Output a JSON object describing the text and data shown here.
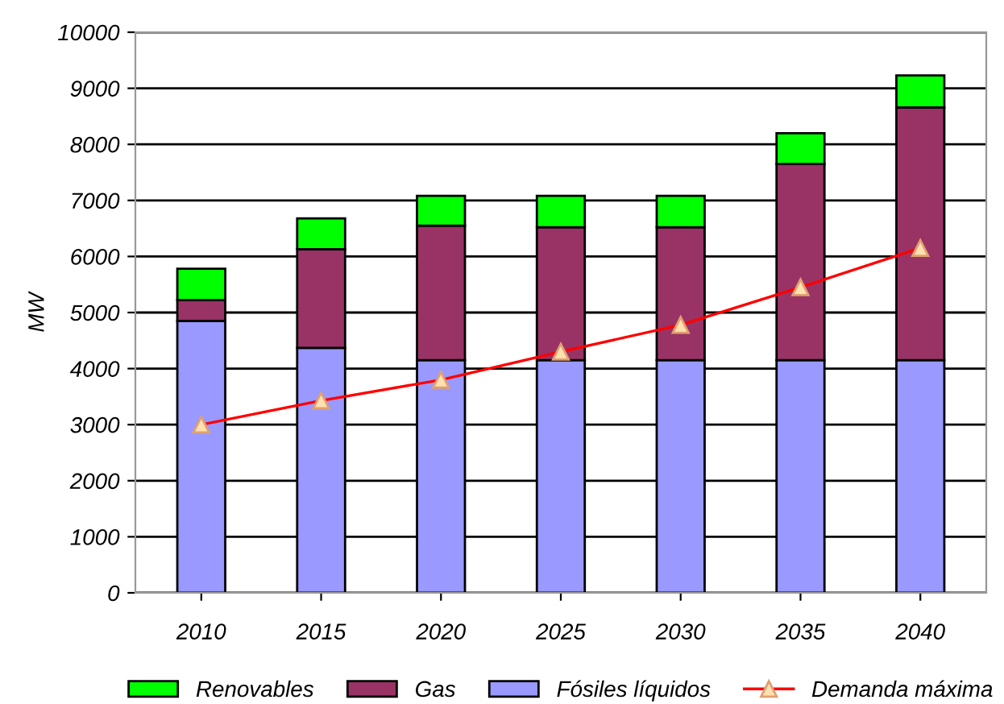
{
  "chart_data": {
    "type": "bar",
    "stacked": true,
    "ylabel": "MW",
    "categories": [
      "2010",
      "2015",
      "2020",
      "2025",
      "2030",
      "2035",
      "2040"
    ],
    "series": [
      {
        "name": "Fósiles líquidos",
        "color": "#9999ff",
        "values": [
          4850,
          4370,
          4150,
          4150,
          4150,
          4150,
          4150
        ]
      },
      {
        "name": "Gas",
        "color": "#993366",
        "values": [
          370,
          1760,
          2400,
          2370,
          2370,
          3500,
          4510
        ]
      },
      {
        "name": "Renovables",
        "color": "#00ff00",
        "values": [
          560,
          550,
          530,
          560,
          560,
          550,
          570
        ]
      },
      {
        "name": "Demanda máxima",
        "type": "line",
        "color": "#ff0000",
        "marker": "triangle",
        "values": [
          3000,
          3430,
          3800,
          4300,
          4780,
          5450,
          6150
        ]
      }
    ],
    "ylim": [
      0,
      10000
    ],
    "yticks": [
      0,
      1000,
      2000,
      3000,
      4000,
      5000,
      6000,
      7000,
      8000,
      9000,
      10000
    ],
    "grid": "y",
    "legend": "bottom"
  }
}
